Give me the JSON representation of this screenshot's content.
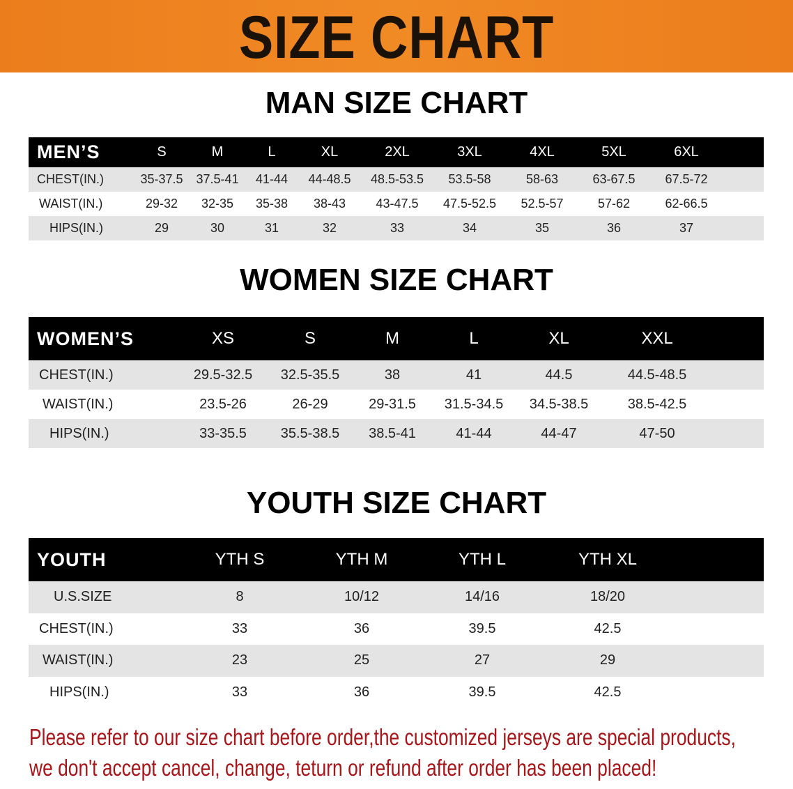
{
  "banner": {
    "title": "SIZE CHART",
    "color": "#ec7d1c"
  },
  "men": {
    "title": "MAN SIZE CHART",
    "header": [
      "MEN’S",
      "S",
      "M",
      "L",
      "XL",
      "2XL",
      "3XL",
      "4XL",
      "5XL",
      "6XL"
    ],
    "rows": [
      [
        "CHEST(IN.)",
        "35-37.5",
        "37.5-41",
        "41-44",
        "44-48.5",
        "48.5-53.5",
        "53.5-58",
        "58-63",
        "63-67.5",
        "67.5-72"
      ],
      [
        "WAIST(IN.)",
        "29-32",
        "32-35",
        "35-38",
        "38-43",
        "43-47.5",
        "47.5-52.5",
        "52.5-57",
        "57-62",
        "62-66.5"
      ],
      [
        "HIPS(IN.)",
        "29",
        "30",
        "31",
        "32",
        "33",
        "34",
        "35",
        "36",
        "37"
      ]
    ]
  },
  "women": {
    "title": "WOMEN SIZE CHART",
    "header": [
      "WOMEN’S",
      "XS",
      "S",
      "M",
      "L",
      "XL",
      "XXL"
    ],
    "rows": [
      [
        "CHEST(IN.)",
        "29.5-32.5",
        "32.5-35.5",
        "38",
        "41",
        "44.5",
        "44.5-48.5"
      ],
      [
        "WAIST(IN.)",
        "23.5-26",
        "26-29",
        "29-31.5",
        "31.5-34.5",
        "34.5-38.5",
        "38.5-42.5"
      ],
      [
        "HIPS(IN.)",
        "33-35.5",
        "35.5-38.5",
        "38.5-41",
        "41-44",
        "44-47",
        "47-50"
      ]
    ]
  },
  "youth": {
    "title": "YOUTH SIZE CHART",
    "header": [
      "YOUTH",
      "YTH S",
      "YTH M",
      "YTH L",
      "YTH XL"
    ],
    "rows": [
      [
        "U.S.SIZE",
        "8",
        "10/12",
        "14/16",
        "18/20"
      ],
      [
        "CHEST(IN.)",
        "33",
        "36",
        "39.5",
        "42.5"
      ],
      [
        "WAIST(IN.)",
        "23",
        "25",
        "27",
        "29"
      ],
      [
        "HIPS(IN.)",
        "33",
        "36",
        "39.5",
        "42.5"
      ]
    ]
  },
  "notice": {
    "line1": "Please refer to our size chart before order,the customized jerseys are special products,",
    "line2": "we don't accept cancel, change, teturn or refund after order has been placed!",
    "color": "#a8161a"
  }
}
